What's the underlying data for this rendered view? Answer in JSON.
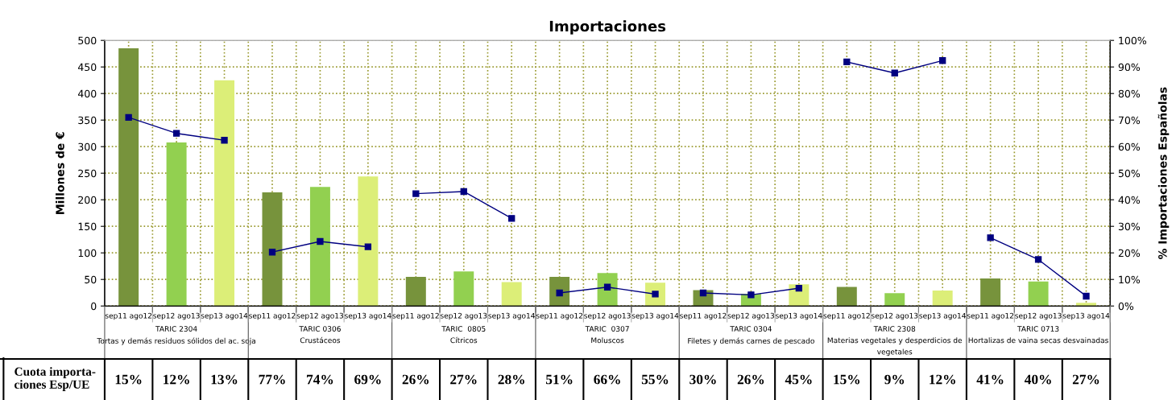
{
  "chart_data": {
    "type": "bar",
    "title": "Importaciones",
    "ylabel": "Millones de €",
    "y2label": "% Importaciones Españolas",
    "categories": [
      "sep11 ago12",
      "sep12 ago13",
      "sep13 ago14",
      "sep11 ago12",
      "sep12 ago13",
      "sep13 ago14",
      "sep11 ago12",
      "sep12 ago13",
      "sep13 ago14",
      "sep11 ago12",
      "sep12 ago13",
      "sep13 ago14",
      "sep11 ago12",
      "sep12 ago13",
      "sep13 ago14",
      "sep11 ago12",
      "sep12 ago13",
      "sep13 ago14",
      "sep11 ago12",
      "sep12 ago13",
      "sep13 ago14"
    ],
    "series": [
      {
        "values": [
          485,
          308,
          425,
          214,
          224,
          244,
          55,
          65,
          45,
          55,
          62,
          44,
          30,
          23,
          41,
          36,
          24,
          29,
          52,
          46,
          6
        ],
        "colors": [
          "#77933c",
          "#92d050",
          "#dcee78",
          "#77933c",
          "#92d050",
          "#dcee78",
          "#77933c",
          "#92d050",
          "#dcee78",
          "#77933c",
          "#92d050",
          "#dcee78",
          "#77933c",
          "#92d050",
          "#dcee78",
          "#77933c",
          "#92d050",
          "#dcee78",
          "#77933c",
          "#92d050",
          "#dcee78"
        ]
      },
      {
        "type": "line",
        "axis": "y2",
        "color": "#000080",
        "values": [
          71,
          65,
          62.4,
          null,
          null,
          null,
          null,
          null,
          null,
          null,
          null,
          null,
          null,
          null,
          null,
          null,
          null,
          null,
          null,
          null,
          null
        ]
      },
      {
        "type": "line",
        "axis": "y2",
        "color": "#000080",
        "values": [
          null,
          null,
          null,
          20.3,
          24.3,
          22.3,
          null,
          null,
          null,
          null,
          null,
          null,
          null,
          null,
          null,
          null,
          null,
          null,
          null,
          null,
          null
        ]
      },
      {
        "type": "line",
        "axis": "y2",
        "color": "#000080",
        "values": [
          null,
          null,
          null,
          null,
          null,
          null,
          42.3,
          43.1,
          33,
          null,
          null,
          null,
          null,
          null,
          null,
          null,
          null,
          null,
          null,
          null,
          null
        ]
      },
      {
        "type": "line",
        "axis": "y2",
        "color": "#000080",
        "values": [
          null,
          null,
          null,
          null,
          null,
          null,
          null,
          null,
          null,
          4.9,
          7.1,
          4.5,
          null,
          null,
          null,
          null,
          null,
          null,
          null,
          null,
          null
        ]
      },
      {
        "type": "line",
        "axis": "y2",
        "color": "#000080",
        "values": [
          null,
          null,
          null,
          null,
          null,
          null,
          null,
          null,
          null,
          null,
          null,
          null,
          4.9,
          4.2,
          6.7,
          null,
          null,
          null,
          null,
          null,
          null
        ]
      },
      {
        "type": "line",
        "axis": "y2",
        "color": "#000080",
        "values": [
          null,
          null,
          null,
          null,
          null,
          null,
          null,
          null,
          null,
          null,
          null,
          null,
          null,
          null,
          null,
          91.9,
          87.7,
          92.4,
          null,
          null,
          null
        ]
      },
      {
        "type": "line",
        "axis": "y2",
        "color": "#000080",
        "values": [
          null,
          null,
          null,
          null,
          null,
          null,
          null,
          null,
          null,
          null,
          null,
          null,
          null,
          null,
          null,
          null,
          null,
          null,
          25.7,
          17.5,
          3.7
        ]
      }
    ],
    "marker": "square",
    "line_style": "solid",
    "grid": true,
    "ylim": [
      0,
      500
    ],
    "yticks": [
      0,
      50,
      100,
      150,
      200,
      250,
      300,
      350,
      400,
      450,
      500
    ],
    "y2lim": [
      0,
      100
    ],
    "y2ticks": [
      {
        "value": 0,
        "label": "0%"
      },
      {
        "value": 10,
        "label": "10%"
      },
      {
        "value": 20,
        "label": "20%"
      },
      {
        "value": 30,
        "label": "30%"
      },
      {
        "value": 40,
        "label": "40%"
      },
      {
        "value": 50,
        "label": "50%"
      },
      {
        "value": 60,
        "label": "60%"
      },
      {
        "value": 70,
        "label": "70%"
      },
      {
        "value": 80,
        "label": "80%"
      },
      {
        "value": 90,
        "label": "90%"
      },
      {
        "value": 100,
        "label": "100%"
      }
    ],
    "annotations": [
      "TARIC 2304\nTortas y demás residuos sólidos del ac. soja",
      "TARIC 0306\nCrustáceos",
      "TARIC  0805\nCítricos",
      "TARIC  0307\nMoluscos",
      "TARIC 0304\nFiletes y demás carnes de pescado",
      "TARIC 2308\nMaterias vegetales y desperdicios de\nvegetales",
      "TARIC 0713\nHortalizas de vaina secas desvainadas",
      "Cuota importa-\nciones Esp/UE",
      "15%",
      "12%",
      "13%",
      "77%",
      "74%",
      "69%",
      "26%",
      "27%",
      "28%",
      "51%",
      "66%",
      "55%",
      "30%",
      "26%",
      "45%",
      "15%",
      "9%",
      "12%",
      "41%",
      "40%",
      "27%"
    ]
  }
}
